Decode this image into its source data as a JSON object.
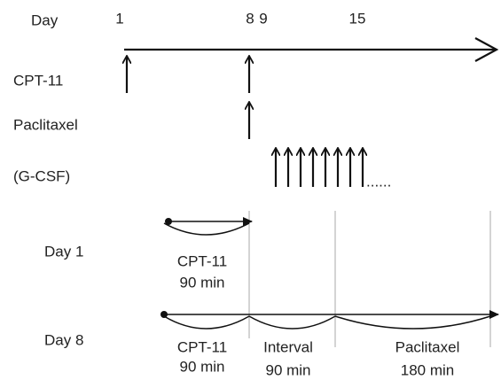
{
  "timeline": {
    "label": "Day",
    "ticks": [
      "1",
      "8",
      "9",
      "15"
    ]
  },
  "drugs": {
    "cpt11": "CPT-11",
    "paclitaxel": "Paclitaxel",
    "gcsf": "(G-CSF)",
    "continuation": "......"
  },
  "schedules": [
    {
      "label": "Day 1",
      "segments": [
        {
          "name": "CPT-11",
          "duration": "90 min"
        }
      ]
    },
    {
      "label": "Day 8",
      "segments": [
        {
          "name": "CPT-11",
          "duration": "90 min"
        },
        {
          "name": "Interval",
          "duration": "90 min"
        },
        {
          "name": "Paclitaxel",
          "duration": "180 min"
        }
      ]
    }
  ]
}
